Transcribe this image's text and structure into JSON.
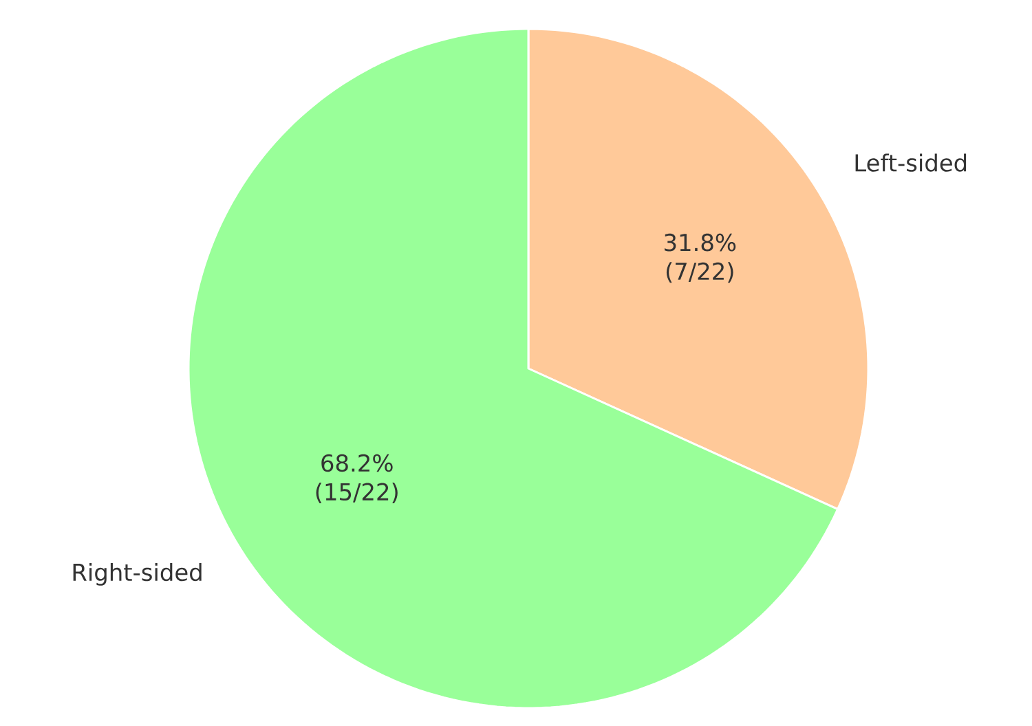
{
  "chart_data": {
    "type": "pie",
    "categories": [
      "Left-sided",
      "Right-sided"
    ],
    "values": [
      31.8,
      68.2
    ],
    "colors": [
      "#ffc999",
      "#99ff99"
    ],
    "value_labels": [
      "31.8% (7/22)",
      "68.2% (15/22)"
    ]
  }
}
